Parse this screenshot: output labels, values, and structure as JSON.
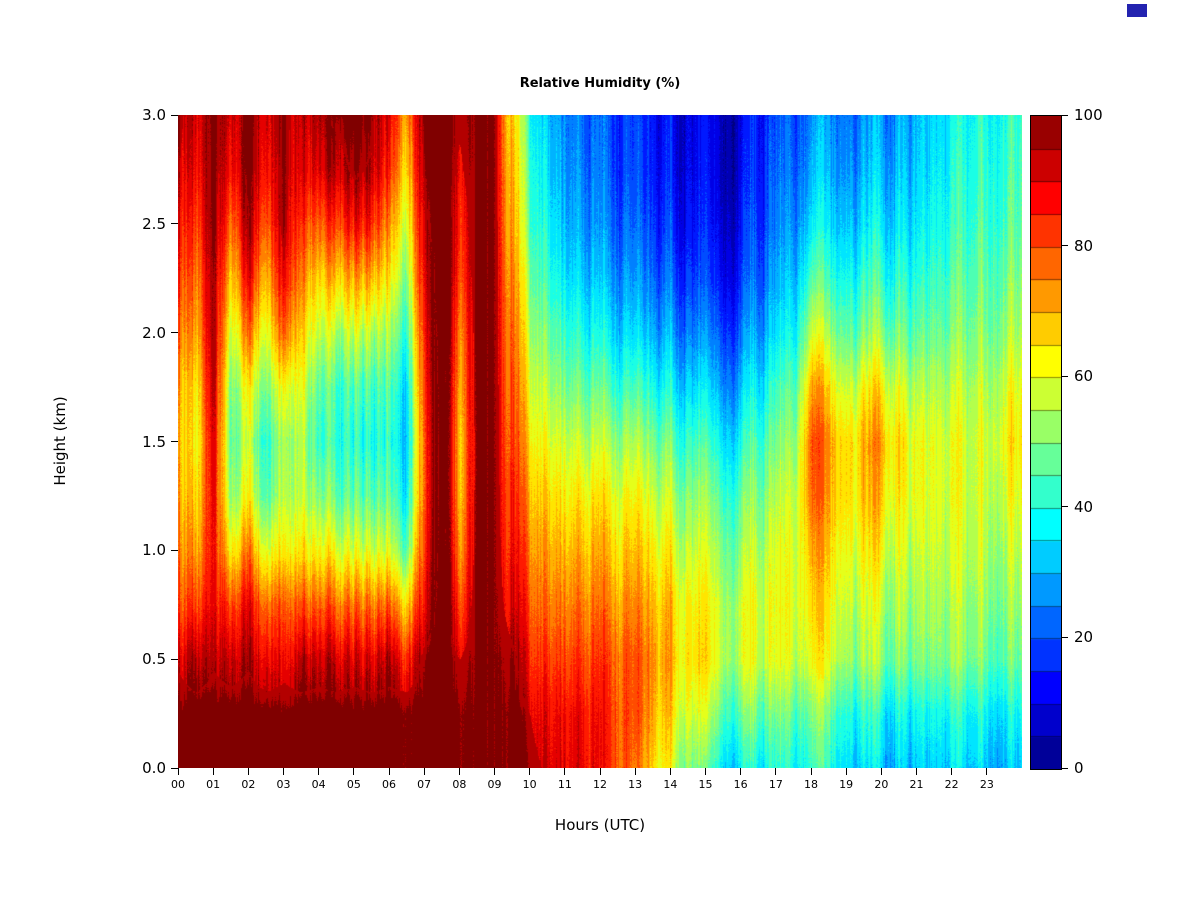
{
  "ui": {
    "corner_square_color": "#2323b0"
  },
  "chart_data": {
    "type": "heatmap",
    "title": "Relative Humidity (%)",
    "xlabel": "Hours (UTC)",
    "ylabel": "Height (km)",
    "x_ticks": [
      "00",
      "01",
      "02",
      "03",
      "04",
      "05",
      "06",
      "07",
      "08",
      "09",
      "10",
      "11",
      "12",
      "13",
      "14",
      "15",
      "16",
      "17",
      "18",
      "19",
      "20",
      "21",
      "22",
      "23"
    ],
    "y_ticks": [
      "0.0",
      "0.5",
      "1.0",
      "1.5",
      "2.0",
      "2.5",
      "3.0"
    ],
    "x_range_hours": [
      0,
      24
    ],
    "y_range_km": [
      0,
      3
    ],
    "grid": false,
    "legend_position": "right-colorbar",
    "colorbar": {
      "min": 0,
      "max": 100,
      "n_blocks": 20,
      "ticks": [
        "0",
        "20",
        "40",
        "60",
        "80",
        "100"
      ],
      "palette": "jet",
      "palette_anchors": [
        "#00008F",
        "#0000FF",
        "#00FFFF",
        "#80FF80",
        "#FFFF00",
        "#FF0000",
        "#800000"
      ]
    },
    "x_hours": [
      0,
      0.5,
      1,
      1.5,
      2,
      2.5,
      3,
      3.5,
      4,
      4.5,
      5,
      5.5,
      6,
      6.5,
      7,
      7.5,
      8,
      8.5,
      9,
      9.5,
      10,
      10.5,
      11,
      11.5,
      12,
      12.5,
      13,
      13.5,
      14,
      14.5,
      15,
      15.5,
      16,
      16.5,
      17,
      17.5,
      18,
      18.5,
      19,
      19.5,
      20,
      20.5,
      21,
      21.5,
      22,
      22.5,
      23,
      23.5
    ],
    "heights_km": [
      0,
      0.25,
      0.5,
      0.75,
      1,
      1.25,
      1.5,
      1.75,
      2,
      2.25,
      2.5,
      2.75,
      3
    ],
    "values_orientation": "values[time_index][height_index_ascending] = RH percent",
    "values": [
      [
        100,
        100,
        95,
        85,
        80,
        76,
        74,
        76,
        82,
        88,
        93,
        97,
        100
      ],
      [
        100,
        100,
        90,
        76,
        66,
        60,
        56,
        58,
        65,
        70,
        76,
        82,
        86
      ],
      [
        100,
        100,
        95,
        90,
        88,
        90,
        92,
        95,
        97,
        98,
        100,
        100,
        100
      ],
      [
        100,
        100,
        92,
        80,
        62,
        50,
        46,
        48,
        56,
        66,
        76,
        86,
        90
      ],
      [
        100,
        100,
        95,
        88,
        75,
        62,
        56,
        62,
        76,
        88,
        96,
        100,
        100
      ],
      [
        100,
        100,
        90,
        78,
        60,
        46,
        42,
        50,
        60,
        70,
        80,
        88,
        92
      ],
      [
        100,
        100,
        93,
        85,
        70,
        62,
        60,
        68,
        85,
        95,
        100,
        100,
        100
      ],
      [
        100,
        100,
        90,
        75,
        60,
        52,
        50,
        55,
        62,
        70,
        78,
        85,
        88
      ],
      [
        100,
        100,
        92,
        78,
        62,
        50,
        42,
        46,
        56,
        66,
        78,
        90,
        95
      ],
      [
        100,
        100,
        90,
        75,
        58,
        45,
        40,
        42,
        52,
        66,
        80,
        92,
        98
      ],
      [
        100,
        100,
        92,
        78,
        60,
        48,
        42,
        46,
        58,
        72,
        88,
        98,
        100
      ],
      [
        100,
        100,
        90,
        76,
        58,
        46,
        40,
        44,
        55,
        70,
        85,
        95,
        98
      ],
      [
        100,
        100,
        92,
        75,
        55,
        44,
        38,
        42,
        50,
        60,
        70,
        80,
        86
      ],
      [
        100,
        100,
        90,
        72,
        52,
        42,
        38,
        40,
        48,
        56,
        64,
        72,
        78
      ],
      [
        100,
        100,
        98,
        90,
        85,
        82,
        82,
        85,
        88,
        92,
        95,
        98,
        100
      ],
      [
        100,
        100,
        100,
        100,
        100,
        100,
        100,
        100,
        100,
        100,
        100,
        100,
        100
      ],
      [
        100,
        100,
        96,
        88,
        80,
        76,
        75,
        78,
        82,
        88,
        92,
        95,
        97
      ],
      [
        100,
        100,
        100,
        100,
        100,
        100,
        100,
        100,
        100,
        100,
        100,
        100,
        100
      ],
      [
        100,
        100,
        100,
        100,
        100,
        100,
        100,
        100,
        100,
        100,
        100,
        100,
        100
      ],
      [
        100,
        100,
        98,
        92,
        88,
        85,
        82,
        80,
        78,
        75,
        72,
        70,
        68
      ],
      [
        98,
        96,
        90,
        85,
        80,
        75,
        70,
        65,
        60,
        55,
        50,
        48,
        45
      ],
      [
        95,
        92,
        86,
        80,
        75,
        70,
        64,
        58,
        52,
        46,
        42,
        38,
        35
      ],
      [
        92,
        90,
        84,
        78,
        72,
        66,
        60,
        52,
        45,
        38,
        33,
        30,
        28
      ],
      [
        90,
        88,
        82,
        76,
        70,
        64,
        56,
        48,
        40,
        33,
        28,
        25,
        23
      ],
      [
        85,
        84,
        80,
        74,
        68,
        62,
        54,
        45,
        36,
        29,
        24,
        21,
        20
      ],
      [
        80,
        80,
        78,
        72,
        66,
        60,
        52,
        42,
        33,
        26,
        21,
        18,
        17
      ],
      [
        72,
        75,
        75,
        70,
        64,
        58,
        50,
        40,
        30,
        23,
        18,
        15,
        14
      ],
      [
        65,
        70,
        72,
        68,
        62,
        56,
        48,
        38,
        28,
        21,
        16,
        13,
        12
      ],
      [
        58,
        64,
        68,
        66,
        60,
        54,
        46,
        36,
        27,
        20,
        15,
        12,
        11
      ],
      [
        52,
        60,
        66,
        64,
        58,
        52,
        44,
        35,
        26,
        19,
        14,
        12,
        11
      ],
      [
        46,
        56,
        64,
        62,
        57,
        51,
        43,
        34,
        25,
        18,
        14,
        12,
        11
      ],
      [
        42,
        52,
        62,
        61,
        56,
        50,
        42,
        33,
        25,
        18,
        14,
        12,
        12
      ],
      [
        40,
        50,
        60,
        60,
        55,
        50,
        42,
        34,
        26,
        20,
        16,
        14,
        13
      ],
      [
        38,
        48,
        58,
        59,
        55,
        50,
        44,
        36,
        28,
        22,
        18,
        16,
        15
      ],
      [
        38,
        46,
        57,
        58,
        56,
        52,
        46,
        40,
        32,
        26,
        22,
        19,
        17
      ],
      [
        37,
        45,
        56,
        58,
        57,
        55,
        50,
        44,
        36,
        30,
        25,
        21,
        19
      ],
      [
        37,
        44,
        56,
        60,
        65,
        72,
        74,
        66,
        52,
        40,
        30,
        24,
        21
      ],
      [
        36,
        43,
        55,
        58,
        62,
        66,
        68,
        60,
        48,
        38,
        30,
        25,
        22
      ],
      [
        36,
        42,
        54,
        58,
        62,
        66,
        66,
        58,
        48,
        40,
        33,
        28,
        25
      ],
      [
        35,
        42,
        54,
        58,
        63,
        68,
        70,
        62,
        50,
        42,
        35,
        30,
        27
      ],
      [
        35,
        41,
        53,
        58,
        64,
        70,
        74,
        66,
        54,
        45,
        38,
        33,
        30
      ],
      [
        34,
        40,
        52,
        56,
        60,
        64,
        66,
        60,
        50,
        43,
        37,
        33,
        30
      ],
      [
        34,
        40,
        51,
        55,
        58,
        62,
        62,
        56,
        48,
        42,
        37,
        34,
        32
      ],
      [
        33,
        39,
        50,
        54,
        57,
        60,
        60,
        55,
        48,
        43,
        39,
        36,
        34
      ],
      [
        33,
        39,
        50,
        53,
        56,
        58,
        58,
        54,
        48,
        44,
        40,
        38,
        36
      ],
      [
        33,
        38,
        49,
        52,
        55,
        57,
        57,
        54,
        49,
        45,
        42,
        40,
        38
      ],
      [
        32,
        38,
        48,
        52,
        55,
        57,
        58,
        55,
        50,
        47,
        44,
        42,
        40
      ],
      [
        32,
        38,
        48,
        52,
        56,
        60,
        64,
        60,
        54,
        50,
        46,
        44,
        42
      ]
    ]
  }
}
